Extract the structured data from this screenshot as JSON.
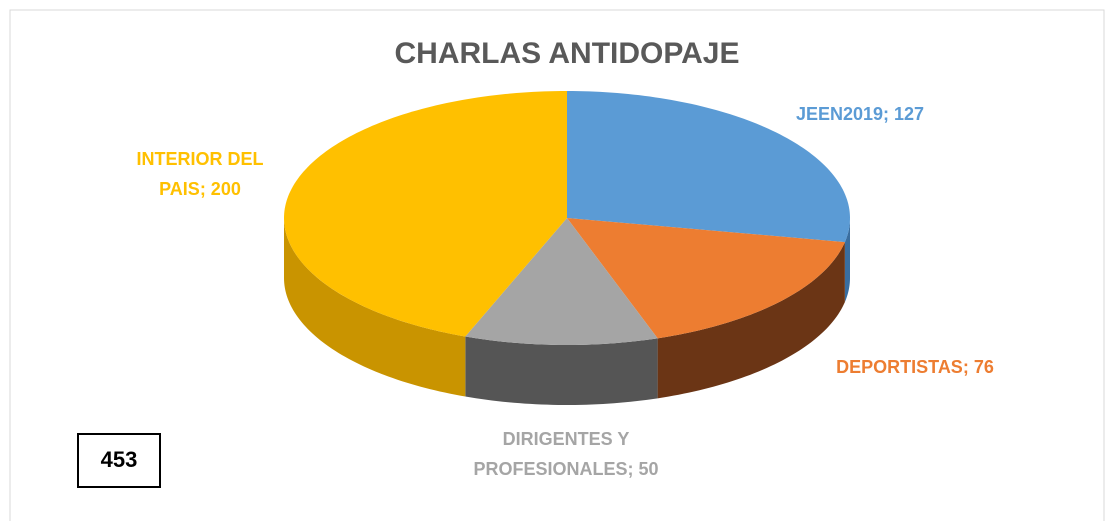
{
  "chart_data": {
    "type": "pie",
    "title": "CHARLAS ANTIDOPAJE",
    "values": [
      127,
      76,
      50,
      200
    ],
    "value_labels": [
      "JEEN2019; 127",
      "DEPORTISTAS; 76",
      "DIRIGENTES Y PROFESIONALES; 50",
      "INTERIOR DEL PAIS; 200"
    ],
    "colors": [
      "#5b9bd5",
      "#ed7d31",
      "#a5a5a5",
      "#ffc000"
    ],
    "side_colors": [
      "#3a6ea0",
      "#6b3515",
      "#555555",
      "#c99400"
    ],
    "total": 453
  }
}
